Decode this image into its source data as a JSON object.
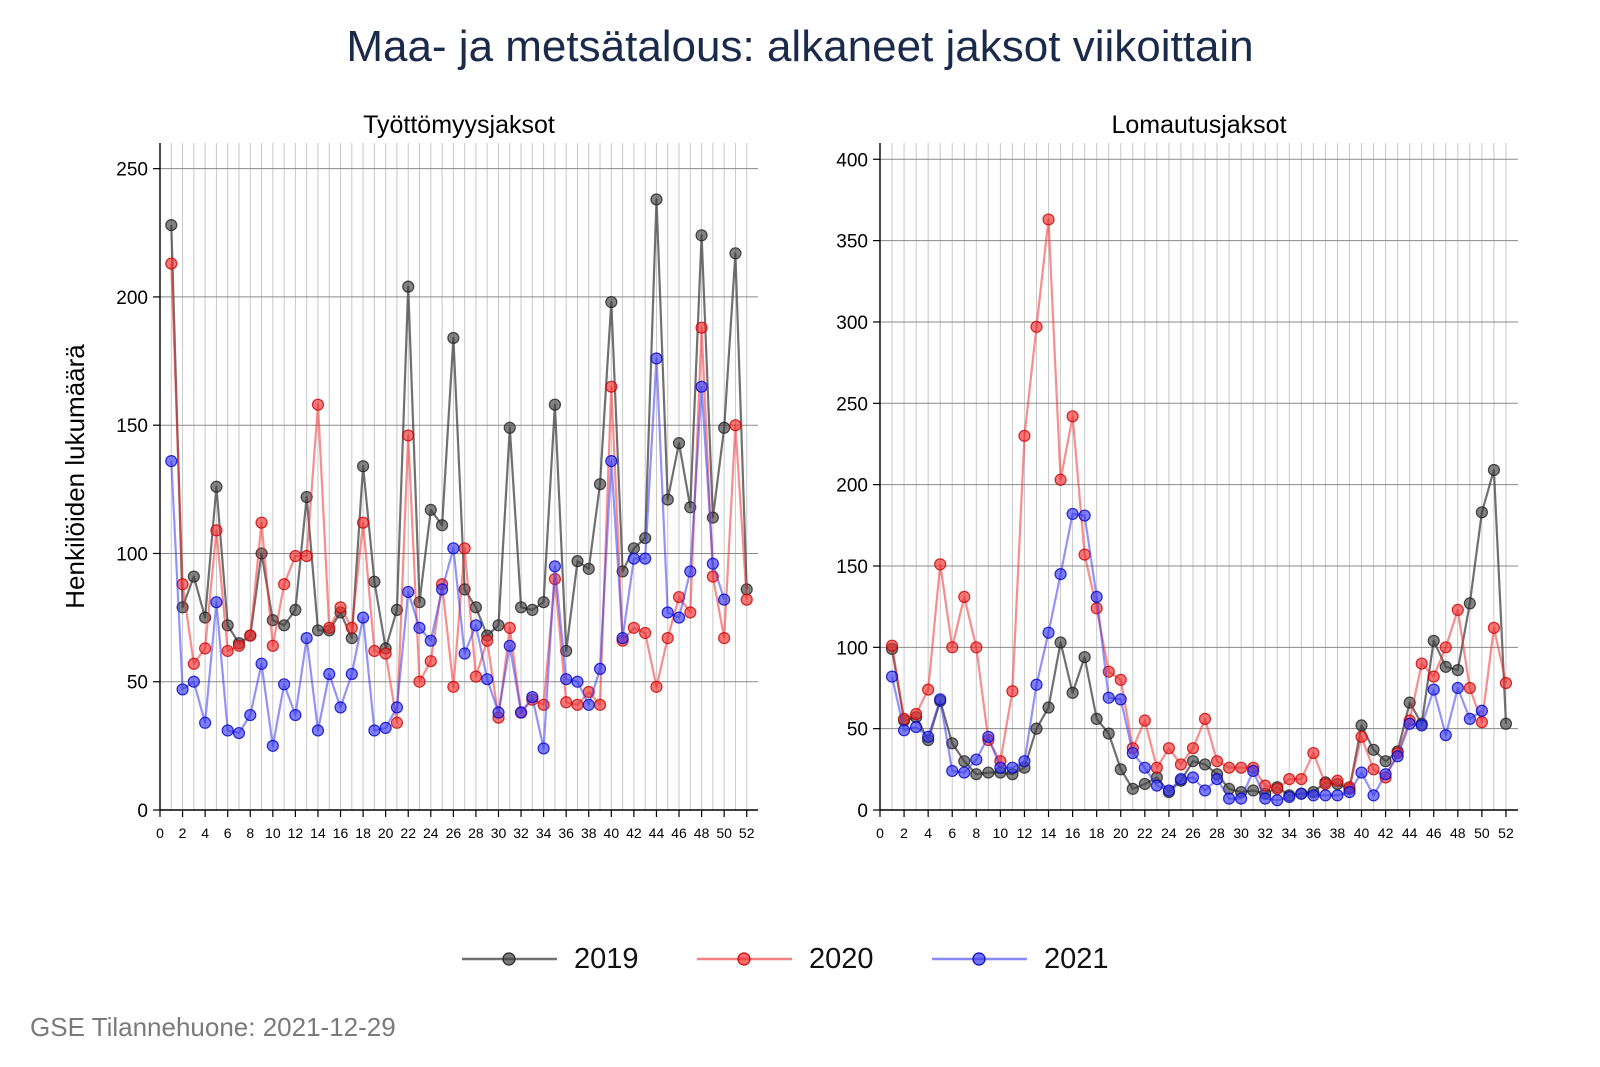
{
  "title": "Maa- ja metsätalous: alkaneet jaksot viikoittain",
  "source": "GSE Tilannehuone: 2021-12-29",
  "legend": [
    {
      "name": "2019",
      "color": "#404040"
    },
    {
      "name": "2020",
      "color": "#f03030"
    },
    {
      "name": "2021",
      "color": "#3a3af0"
    }
  ],
  "chart_data": [
    {
      "type": "line",
      "title": "Työttömyysjaksot",
      "ylabel": "Henkilöiden lukumäärä",
      "xlabel": "",
      "xlim": [
        0,
        53
      ],
      "ylim": [
        0,
        260
      ],
      "xticks": [
        0,
        2,
        4,
        6,
        8,
        10,
        12,
        14,
        16,
        18,
        20,
        22,
        24,
        26,
        28,
        30,
        32,
        34,
        36,
        38,
        40,
        42,
        44,
        46,
        48,
        50,
        52
      ],
      "yticks": [
        0,
        50,
        100,
        150,
        200,
        250
      ],
      "grid": true,
      "x": [
        1,
        2,
        3,
        4,
        5,
        6,
        7,
        8,
        9,
        10,
        11,
        12,
        13,
        14,
        15,
        16,
        17,
        18,
        19,
        20,
        21,
        22,
        23,
        24,
        25,
        26,
        27,
        28,
        29,
        30,
        31,
        32,
        33,
        34,
        35,
        36,
        37,
        38,
        39,
        40,
        41,
        42,
        43,
        44,
        45,
        46,
        47,
        48,
        49,
        50,
        51,
        52
      ],
      "series": [
        {
          "name": "2019",
          "values": [
            228,
            79,
            91,
            75,
            126,
            72,
            65,
            68,
            100,
            74,
            72,
            78,
            122,
            70,
            70,
            77,
            67,
            134,
            89,
            63,
            78,
            204,
            81,
            117,
            111,
            184,
            86,
            79,
            68,
            72,
            149,
            79,
            78,
            81,
            158,
            62,
            97,
            94,
            127,
            198,
            93,
            102,
            106,
            238,
            121,
            143,
            118,
            224,
            114,
            149,
            217,
            86
          ]
        },
        {
          "name": "2020",
          "values": [
            213,
            88,
            57,
            63,
            109,
            62,
            64,
            68,
            112,
            64,
            88,
            99,
            99,
            158,
            71,
            79,
            71,
            112,
            62,
            61,
            34,
            146,
            50,
            58,
            88,
            48,
            102,
            52,
            66,
            36,
            71,
            38,
            43,
            41,
            90,
            42,
            41,
            46,
            41,
            165,
            66,
            71,
            69,
            48,
            67,
            83,
            77,
            188,
            91,
            67,
            150,
            82
          ]
        },
        {
          "name": "2021",
          "values": [
            136,
            47,
            50,
            34,
            81,
            31,
            30,
            37,
            57,
            25,
            49,
            37,
            67,
            31,
            53,
            40,
            53,
            75,
            31,
            32,
            40,
            85,
            71,
            66,
            86,
            102,
            61,
            72,
            51,
            38,
            64,
            38,
            44,
            24,
            95,
            51,
            50,
            41,
            55,
            136,
            67,
            98,
            98,
            176,
            77,
            75,
            93,
            165,
            96,
            82,
            null,
            null
          ]
        }
      ]
    },
    {
      "type": "line",
      "title": "Lomautusjaksot",
      "ylabel": "",
      "xlabel": "",
      "xlim": [
        0,
        53
      ],
      "ylim": [
        0,
        410
      ],
      "xticks": [
        0,
        2,
        4,
        6,
        8,
        10,
        12,
        14,
        16,
        18,
        20,
        22,
        24,
        26,
        28,
        30,
        32,
        34,
        36,
        38,
        40,
        42,
        44,
        46,
        48,
        50,
        52
      ],
      "yticks": [
        0,
        50,
        100,
        150,
        200,
        250,
        300,
        350,
        400
      ],
      "grid": true,
      "x": [
        1,
        2,
        3,
        4,
        5,
        6,
        7,
        8,
        9,
        10,
        11,
        12,
        13,
        14,
        15,
        16,
        17,
        18,
        19,
        20,
        21,
        22,
        23,
        24,
        25,
        26,
        27,
        28,
        29,
        30,
        31,
        32,
        33,
        34,
        35,
        36,
        37,
        38,
        39,
        40,
        41,
        42,
        43,
        44,
        45,
        46,
        47,
        48,
        49,
        50,
        51,
        52
      ],
      "series": [
        {
          "name": "2019",
          "values": [
            99,
            55,
            57,
            43,
            67,
            41,
            30,
            22,
            23,
            23,
            22,
            26,
            50,
            63,
            103,
            72,
            94,
            56,
            47,
            25,
            13,
            16,
            20,
            11,
            18,
            30,
            28,
            22,
            13,
            11,
            12,
            10,
            14,
            9,
            10,
            11,
            17,
            16,
            13,
            52,
            37,
            30,
            36,
            66,
            53,
            104,
            88,
            86,
            127,
            183,
            209,
            53
          ]
        },
        {
          "name": "2020",
          "values": [
            101,
            56,
            59,
            74,
            151,
            100,
            131,
            100,
            43,
            30,
            73,
            230,
            297,
            363,
            203,
            242,
            157,
            124,
            85,
            80,
            38,
            55,
            26,
            38,
            28,
            38,
            56,
            30,
            26,
            26,
            26,
            15,
            13,
            19,
            19,
            35,
            16,
            18,
            14,
            45,
            25,
            20,
            35,
            55,
            90,
            82,
            100,
            123,
            75,
            54,
            112,
            78
          ]
        },
        {
          "name": "2021",
          "values": [
            82,
            49,
            51,
            45,
            68,
            24,
            23,
            31,
            45,
            26,
            26,
            30,
            77,
            109,
            145,
            182,
            181,
            131,
            69,
            68,
            35,
            26,
            15,
            12,
            19,
            20,
            12,
            19,
            7,
            7,
            24,
            7,
            6,
            8,
            10,
            9,
            9,
            9,
            11,
            23,
            9,
            22,
            33,
            53,
            52,
            74,
            46,
            75,
            56,
            61,
            null,
            null
          ]
        }
      ]
    }
  ]
}
